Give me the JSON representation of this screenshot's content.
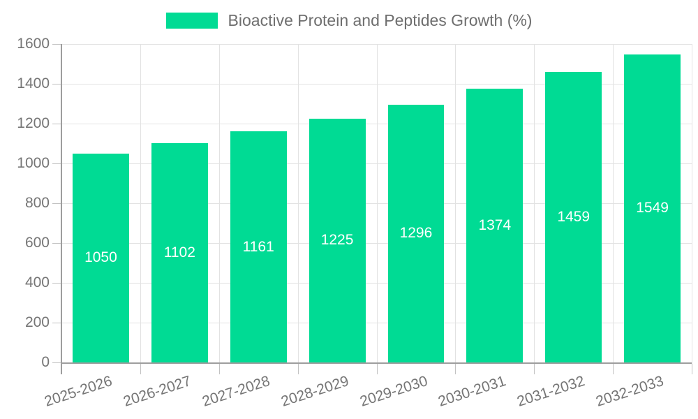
{
  "chart_data": {
    "type": "bar",
    "title": "Bioactive Protein and Peptides Growth (%)",
    "categories": [
      "2025-2026",
      "2026-2027",
      "2027-2028",
      "2028-2029",
      "2029-2030",
      "2030-2031",
      "2031-2032",
      "2032-2033"
    ],
    "values": [
      1050,
      1102,
      1161,
      1225,
      1296,
      1374,
      1459,
      1549
    ],
    "series_name": "Bioactive Protein and Peptides Growth (%)",
    "xlabel": "",
    "ylabel": "",
    "ylim": [
      0,
      1600
    ],
    "ytick_step": 200,
    "yticks": [
      0,
      200,
      400,
      600,
      800,
      1000,
      1200,
      1400,
      1600
    ],
    "grid": true,
    "legend_position": "top",
    "value_labels": "inside-center"
  },
  "colors": {
    "bar": "#00DB94",
    "value_label": "#ffffff",
    "legend_text": "#6e6e6e",
    "axis_text": "#757575",
    "gridline": "#e2e2e2",
    "axis_line": "#9e9e9e",
    "tick": "#c2c2c2",
    "background": "#ffffff"
  }
}
